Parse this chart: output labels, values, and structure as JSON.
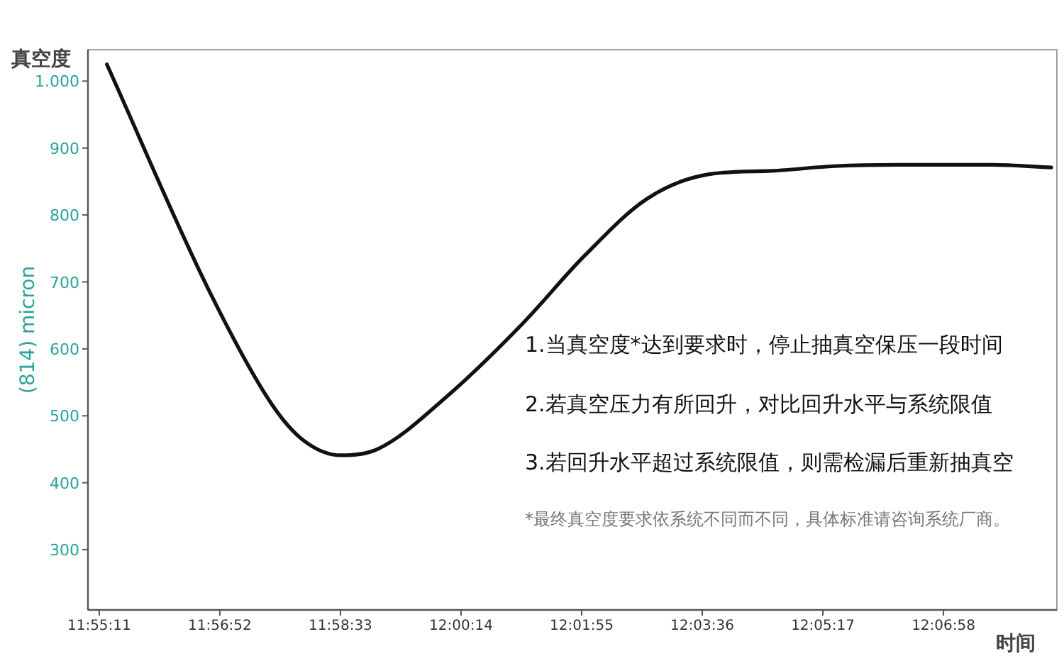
{
  "chart_data": {
    "type": "line",
    "title": "真空度",
    "xlabel": "时间",
    "ylabel": "(814) micron",
    "x": [
      11.9215,
      11.9455,
      11.96,
      11.9673,
      11.976,
      11.9847,
      12.0006,
      12.0181,
      12.0326,
      12.0471,
      12.0616,
      12.0762,
      12.0907,
      12.1055,
      12.1273,
      12.1412
    ],
    "series": [
      {
        "color": "#111111",
        "values": [
          1025,
          684,
          516,
          463,
          441,
          451,
          529,
          637,
          739,
          824,
          861,
          866,
          873,
          875,
          875,
          871
        ]
      }
    ],
    "xlim": [
      11.9171,
      12.1425
    ],
    "xticks": [
      {
        "value": 11.919722,
        "label": "11:55:11"
      },
      {
        "value": 11.947778,
        "label": "11:56:52"
      },
      {
        "value": 11.975833,
        "label": "11:58:33"
      },
      {
        "value": 12.003889,
        "label": "12:00:14"
      },
      {
        "value": 12.031944,
        "label": "12:01:55"
      },
      {
        "value": 12.06,
        "label": "12:03:36"
      },
      {
        "value": 12.088056,
        "label": "12:05:17"
      },
      {
        "value": 12.116111,
        "label": "12:06:58"
      }
    ],
    "ylim": [
      210,
      1047
    ],
    "yticks": [
      300,
      400,
      500,
      600,
      700,
      800,
      900,
      {
        "value": 1000,
        "label": "1.000"
      }
    ],
    "marker": "none",
    "line_style": "solid",
    "annotations": [
      "1.当真空度*达到要求时，停止抽真空保压一段时间",
      "2.若真空压力有所回升，对比回升水平与系统限值",
      "3.若回升水平超过系统限值，则需检漏后重新抽真空",
      "*最终真空度要求依系统不同而不同，具体标准请咨询系统厂商。"
    ]
  }
}
